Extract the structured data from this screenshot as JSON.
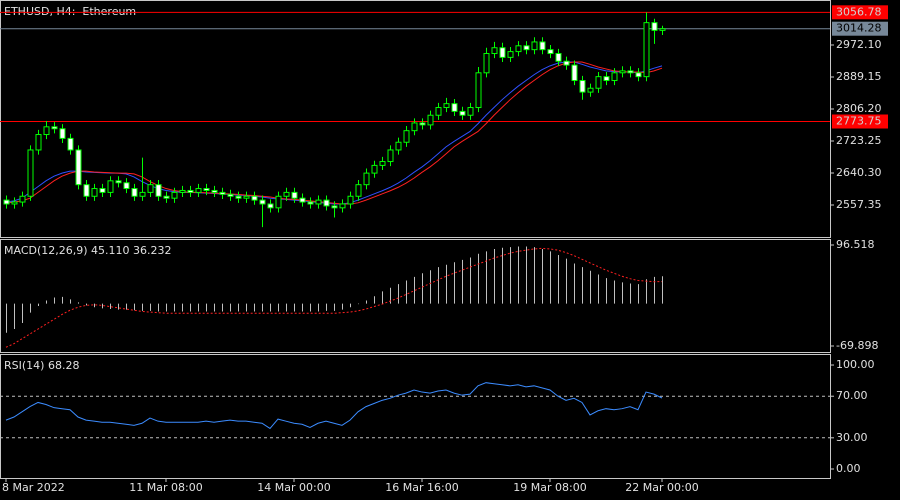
{
  "chart_data": [
    {
      "type": "candlestick",
      "title": "ETHUSD, H4:  Ethereum",
      "categories": [
        "8 Mar 2022",
        null,
        null,
        null,
        null,
        null,
        null,
        null,
        null,
        null,
        null,
        null,
        null,
        null,
        null,
        null,
        null,
        null,
        null,
        null,
        "11 Mar 08:00",
        null,
        null,
        null,
        null,
        null,
        null,
        null,
        null,
        null,
        null,
        null,
        null,
        null,
        null,
        null,
        "14 Mar 00:00",
        null,
        null,
        null,
        null,
        null,
        null,
        null,
        null,
        null,
        null,
        null,
        null,
        null,
        null,
        null,
        "16 Mar 16:00",
        null,
        null,
        null,
        null,
        null,
        null,
        null,
        null,
        null,
        null,
        null,
        null,
        null,
        null,
        null,
        "19 Mar 08:00",
        null,
        null,
        null,
        null,
        null,
        null,
        null,
        null,
        null,
        null,
        null,
        null,
        null,
        "22 Mar 00:00"
      ],
      "open": [
        2570,
        2560,
        2565,
        2580,
        2700,
        2740,
        2760,
        2755,
        2730,
        2700,
        2610,
        2580,
        2600,
        2590,
        2620,
        2615,
        2600,
        2580,
        2590,
        2610,
        2580,
        2575,
        2590,
        2595,
        2590,
        2600,
        2595,
        2590,
        2585,
        2580,
        2575,
        2580,
        2570,
        2560,
        2550,
        2580,
        2590,
        2575,
        2565,
        2560,
        2570,
        2555,
        2550,
        2560,
        2580,
        2610,
        2640,
        2660,
        2670,
        2700,
        2720,
        2750,
        2770,
        2765,
        2790,
        2810,
        2820,
        2800,
        2790,
        2810,
        2900,
        2950,
        2965,
        2940,
        2955,
        2970,
        2960,
        2980,
        2960,
        2950,
        2930,
        2920,
        2880,
        2850,
        2860,
        2890,
        2880,
        2900,
        2905,
        2900,
        2890,
        3030,
        3010
      ],
      "high": [
        2582,
        2577,
        2592,
        2712,
        2752,
        2775,
        2772,
        2767,
        2742,
        2712,
        2622,
        2612,
        2612,
        2632,
        2632,
        2627,
        2612,
        2680,
        2622,
        2622,
        2592,
        2602,
        2607,
        2607,
        2612,
        2612,
        2607,
        2602,
        2597,
        2592,
        2592,
        2592,
        2582,
        2572,
        2592,
        2602,
        2602,
        2587,
        2577,
        2582,
        2582,
        2567,
        2572,
        2592,
        2622,
        2652,
        2672,
        2682,
        2712,
        2732,
        2762,
        2782,
        2782,
        2802,
        2822,
        2835,
        2832,
        2812,
        2822,
        2915,
        2965,
        2980,
        2978,
        2967,
        2982,
        2982,
        2992,
        2992,
        2972,
        2962,
        2942,
        2932,
        2892,
        2872,
        2902,
        2902,
        2912,
        2917,
        2917,
        2912,
        3056.78,
        3040,
        3022
      ],
      "low": [
        2548,
        2548,
        2553,
        2568,
        2688,
        2728,
        2743,
        2718,
        2688,
        2598,
        2568,
        2568,
        2578,
        2578,
        2603,
        2588,
        2568,
        2568,
        2578,
        2568,
        2563,
        2563,
        2578,
        2578,
        2578,
        2583,
        2578,
        2573,
        2568,
        2563,
        2563,
        2558,
        2500,
        2538,
        2538,
        2568,
        2563,
        2553,
        2548,
        2548,
        2543,
        2525,
        2538,
        2548,
        2568,
        2598,
        2628,
        2648,
        2658,
        2688,
        2708,
        2738,
        2753,
        2753,
        2778,
        2798,
        2788,
        2778,
        2778,
        2798,
        2888,
        2938,
        2928,
        2928,
        2943,
        2948,
        2948,
        2948,
        2938,
        2918,
        2908,
        2868,
        2830,
        2838,
        2848,
        2868,
        2868,
        2888,
        2888,
        2878,
        2878,
        2975,
        2998
      ],
      "close": [
        2560,
        2565,
        2580,
        2700,
        2740,
        2760,
        2755,
        2730,
        2700,
        2610,
        2580,
        2600,
        2590,
        2620,
        2615,
        2600,
        2580,
        2590,
        2610,
        2580,
        2575,
        2590,
        2595,
        2590,
        2600,
        2595,
        2590,
        2585,
        2580,
        2575,
        2580,
        2570,
        2560,
        2550,
        2580,
        2590,
        2575,
        2565,
        2560,
        2570,
        2555,
        2550,
        2560,
        2580,
        2610,
        2640,
        2660,
        2670,
        2700,
        2720,
        2750,
        2770,
        2765,
        2790,
        2810,
        2820,
        2800,
        2790,
        2810,
        2900,
        2950,
        2965,
        2940,
        2955,
        2970,
        2960,
        2980,
        2960,
        2950,
        2930,
        2920,
        2880,
        2850,
        2860,
        2890,
        2880,
        2900,
        2905,
        2900,
        2890,
        3030,
        3010,
        3014.28
      ],
      "up_color": "#000000",
      "down_color": "#ffffff",
      "wick_color": "#00ff00",
      "series": [
        {
          "color": "#3050ff",
          "values": [
            2565,
            2568,
            2575,
            2590,
            2605,
            2620,
            2632,
            2640,
            2645,
            2645,
            2643,
            2642,
            2641,
            2640,
            2640,
            2638,
            2630,
            2618,
            2608,
            2600,
            2595,
            2592,
            2590,
            2590,
            2589,
            2588,
            2587,
            2586,
            2585,
            2583,
            2582,
            2580,
            2578,
            2575,
            2573,
            2572,
            2570,
            2568,
            2566,
            2564,
            2562,
            2560,
            2560,
            2563,
            2570,
            2578,
            2586,
            2594,
            2603,
            2614,
            2627,
            2642,
            2656,
            2672,
            2690,
            2708,
            2722,
            2735,
            2748,
            2768,
            2790,
            2810,
            2830,
            2848,
            2865,
            2880,
            2895,
            2908,
            2918,
            2925,
            2928,
            2928,
            2922,
            2915,
            2910,
            2905,
            2903,
            2902,
            2902,
            2900,
            2905,
            2912,
            2918
          ]
        },
        {
          "color": "#ff2020",
          "values": [
            2562,
            2565,
            2568,
            2575,
            2590,
            2605,
            2620,
            2632,
            2640,
            2645,
            2645,
            2643,
            2642,
            2641,
            2640,
            2640,
            2638,
            2630,
            2618,
            2608,
            2600,
            2595,
            2592,
            2590,
            2590,
            2589,
            2588,
            2587,
            2586,
            2585,
            2583,
            2582,
            2580,
            2578,
            2575,
            2573,
            2572,
            2570,
            2568,
            2566,
            2564,
            2562,
            2560,
            2560,
            2563,
            2570,
            2578,
            2586,
            2594,
            2603,
            2614,
            2627,
            2642,
            2656,
            2672,
            2690,
            2708,
            2722,
            2735,
            2748,
            2768,
            2790,
            2810,
            2830,
            2848,
            2865,
            2880,
            2895,
            2908,
            2918,
            2925,
            2928,
            2928,
            2922,
            2915,
            2910,
            2905,
            2903,
            2902,
            2902,
            2900,
            2905,
            2912
          ]
        }
      ],
      "ylim": [
        2474.4,
        3088.7
      ],
      "yticks": [
        {
          "value": 2972.1,
          "label": "2972.10"
        },
        2889.15,
        {
          "value": 2806.2,
          "label": "2806.20"
        },
        2723.25,
        {
          "value": 2640.3,
          "label": "2640.30"
        },
        2557.35
      ],
      "levels": [
        {
          "value": 3056.78,
          "color": "#ff0000"
        },
        {
          "value": 2773.75,
          "color": "#ff0000"
        }
      ],
      "bid": 3014.28,
      "bid_color": "#778899"
    },
    {
      "type": "macd",
      "title": "MACD(12,26,9) 45.110 36.232",
      "series": [
        {
          "color": "#c0c0c0",
          "values": [
            -48,
            -42,
            -32,
            -15,
            -4,
            5,
            10,
            11,
            7,
            2,
            -3,
            -6,
            -8,
            -9,
            -10,
            -10,
            -11,
            -12,
            -12,
            -13,
            -13,
            -13,
            -13,
            -13,
            -13,
            -13,
            -13,
            -13,
            -13,
            -13,
            -13,
            -13,
            -13,
            -13,
            -13,
            -13,
            -13,
            -13,
            -13,
            -13,
            -12,
            -12,
            -10,
            -6,
            -1,
            5,
            12,
            20,
            26,
            32,
            38,
            44,
            50,
            55,
            60,
            64,
            68,
            72,
            76,
            82,
            86,
            90,
            92,
            93,
            94,
            94,
            93,
            90,
            86,
            80,
            74,
            66,
            60,
            54,
            48,
            42,
            38,
            35,
            33,
            32,
            40,
            44,
            45.11
          ]
        },
        {
          "color": "#ff2020",
          "values": [
            -72,
            -66,
            -58,
            -50,
            -42,
            -34,
            -26,
            -18,
            -11,
            -6,
            -3,
            -2,
            -3,
            -5,
            -7,
            -9,
            -11,
            -13,
            -14,
            -15,
            -16,
            -16,
            -16,
            -16,
            -16,
            -16,
            -16,
            -16,
            -16,
            -16,
            -16,
            -16,
            -16,
            -16,
            -16,
            -16,
            -16,
            -16,
            -16,
            -16,
            -16,
            -16,
            -15,
            -14,
            -12,
            -9,
            -5,
            -1,
            4,
            9,
            15,
            21,
            27,
            33,
            39,
            45,
            50,
            55,
            60,
            65,
            70,
            75,
            79,
            83,
            86,
            88,
            90,
            91,
            90,
            88,
            84,
            79,
            73,
            67,
            61,
            55,
            50,
            45,
            41,
            38,
            37,
            36,
            36.232
          ]
        }
      ],
      "ylim": [
        -79.8,
        106.4
      ],
      "yticks": [
        96.518,
        -69.898
      ]
    },
    {
      "type": "line",
      "title": "RSI(14) 68.28",
      "series": [
        {
          "color": "#3c8cff",
          "values": [
            47,
            50,
            55,
            60,
            64,
            62,
            59,
            58,
            57,
            50,
            47,
            46,
            45,
            45,
            44,
            43,
            42,
            44,
            49,
            46,
            45,
            45,
            45,
            45,
            45,
            46,
            45,
            46,
            47,
            46,
            46,
            45,
            44,
            39,
            48,
            46,
            44,
            43,
            40,
            44,
            46,
            44,
            42,
            47,
            55,
            60,
            63,
            66,
            68,
            71,
            73,
            76,
            74,
            73,
            75,
            76,
            73,
            71,
            72,
            80,
            83,
            82,
            81,
            80,
            81,
            79,
            80,
            78,
            76,
            70,
            66,
            68,
            64,
            52,
            56,
            58,
            57,
            58,
            60,
            57,
            74,
            72,
            68.28
          ]
        }
      ],
      "ylim": [
        -8.65,
        110.6
      ],
      "yticks": [
        {
          "value": 100,
          "label": "100.00"
        },
        {
          "value": 70,
          "label": "70.00"
        },
        {
          "value": 30,
          "label": "30.00"
        },
        {
          "value": 0,
          "label": "0.00"
        }
      ],
      "levels": [
        70,
        30
      ]
    }
  ]
}
